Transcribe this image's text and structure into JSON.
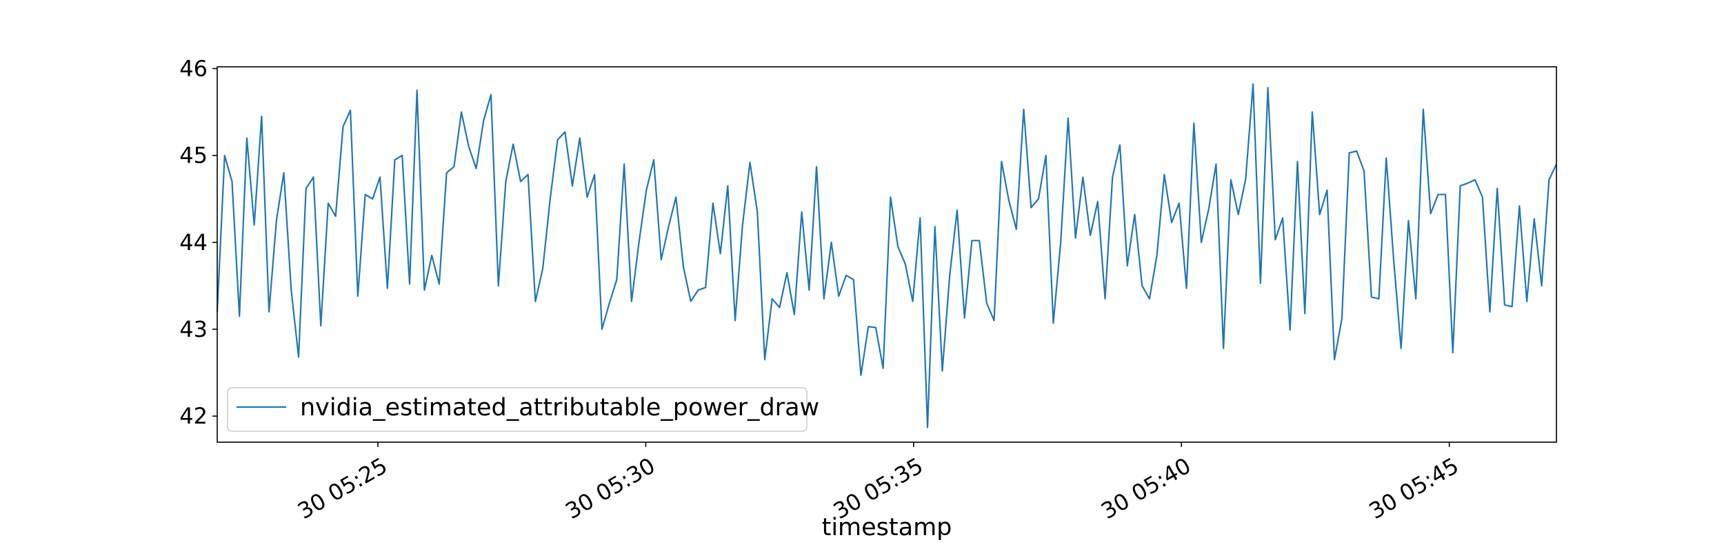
{
  "chart_data": {
    "type": "line",
    "title": "",
    "xlabel": "timestamp",
    "ylabel": "",
    "ylim": [
      41.7,
      46.02
    ],
    "y_ticks": [
      42,
      43,
      44,
      45,
      46
    ],
    "y_tick_labels": [
      "42",
      "43",
      "44",
      "45",
      "46"
    ],
    "x_ticks": [
      5,
      10,
      15,
      20,
      25
    ],
    "x_tick_labels": [
      "30 05:25",
      "30 05:30",
      "30 05:35",
      "30 05:40",
      "30 05:45"
    ],
    "legend": {
      "placement": "lower-left",
      "entries": [
        "nvidia_estimated_attributable_power_draw"
      ]
    },
    "grid": false,
    "series": [
      {
        "name": "nvidia_estimated_attributable_power_draw",
        "color": "#1f77b4",
        "x_start_label": "30 05:22",
        "x_units": "minutes past 05:20",
        "x_range": [
          2.0,
          27.0
        ],
        "values": [
          43.2,
          45.0,
          44.7,
          43.15,
          45.2,
          44.2,
          45.45,
          43.2,
          44.25,
          44.8,
          43.45,
          42.68,
          44.62,
          44.75,
          43.04,
          44.45,
          44.3,
          45.33,
          45.52,
          43.38,
          44.55,
          44.5,
          44.75,
          43.47,
          44.95,
          45.0,
          43.52,
          45.75,
          43.45,
          43.85,
          43.52,
          44.8,
          44.87,
          45.5,
          45.1,
          44.85,
          45.4,
          45.7,
          43.5,
          44.7,
          45.13,
          44.7,
          44.78,
          43.32,
          43.7,
          44.5,
          45.18,
          45.27,
          44.65,
          45.2,
          44.52,
          44.78,
          43.0,
          43.3,
          43.57,
          44.9,
          43.32,
          44.0,
          44.6,
          44.95,
          43.8,
          44.18,
          44.52,
          43.72,
          43.32,
          43.45,
          43.48,
          44.45,
          43.87,
          44.65,
          43.1,
          44.2,
          44.92,
          44.35,
          42.65,
          43.35,
          43.25,
          43.65,
          43.17,
          44.35,
          43.45,
          44.87,
          43.35,
          44.0,
          43.38,
          43.62,
          43.57,
          42.47,
          43.03,
          43.02,
          42.55,
          44.52,
          43.95,
          43.75,
          43.32,
          44.28,
          41.87,
          44.18,
          42.52,
          43.62,
          44.37,
          43.13,
          44.02,
          44.02,
          43.3,
          43.1,
          44.93,
          44.48,
          44.15,
          45.53,
          44.4,
          44.5,
          45.0,
          43.07,
          44.0,
          45.43,
          44.05,
          44.75,
          44.08,
          44.47,
          43.35,
          44.75,
          45.12,
          43.73,
          44.32,
          43.5,
          43.35,
          43.85,
          44.78,
          44.23,
          44.45,
          43.47,
          45.37,
          44.0,
          44.38,
          44.9,
          42.78,
          44.72,
          44.32,
          44.73,
          45.82,
          43.53,
          45.78,
          44.03,
          44.28,
          42.99,
          44.93,
          43.18,
          45.5,
          44.32,
          44.6,
          42.65,
          43.12,
          45.03,
          45.05,
          44.82,
          43.37,
          43.35,
          44.97,
          43.8,
          42.78,
          44.25,
          43.35,
          45.53,
          44.33,
          44.55,
          44.55,
          42.73,
          44.65,
          44.68,
          44.72,
          44.52,
          43.2,
          44.62,
          43.28,
          43.26,
          44.42,
          43.32,
          44.27,
          43.5,
          44.72,
          44.9
        ]
      }
    ]
  }
}
